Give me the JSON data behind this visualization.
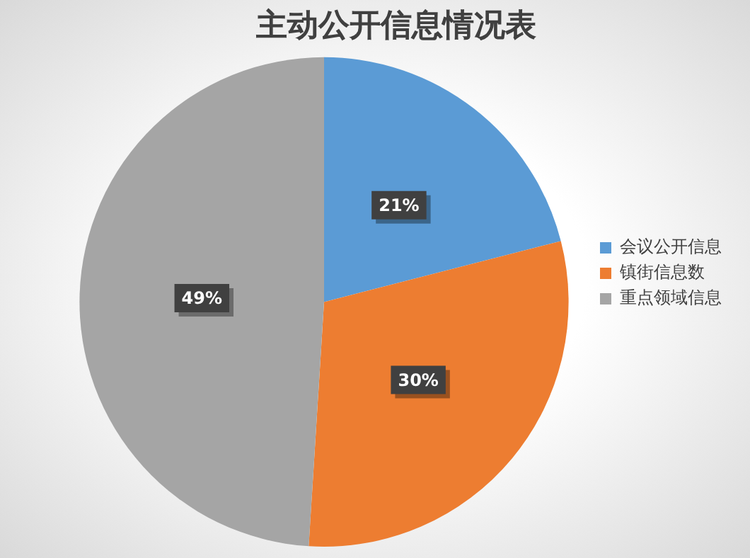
{
  "chart_data": {
    "type": "pie",
    "title": "主动公开信息情况表",
    "categories": [
      "会议公开信息",
      "镇街信息数",
      "重点领域信息"
    ],
    "values": [
      21,
      30,
      49
    ],
    "colors": [
      "#5b9bd5",
      "#ed7d31",
      "#a5a5a5"
    ],
    "value_labels": [
      "21%",
      "30%",
      "49%"
    ],
    "legend": "right"
  }
}
